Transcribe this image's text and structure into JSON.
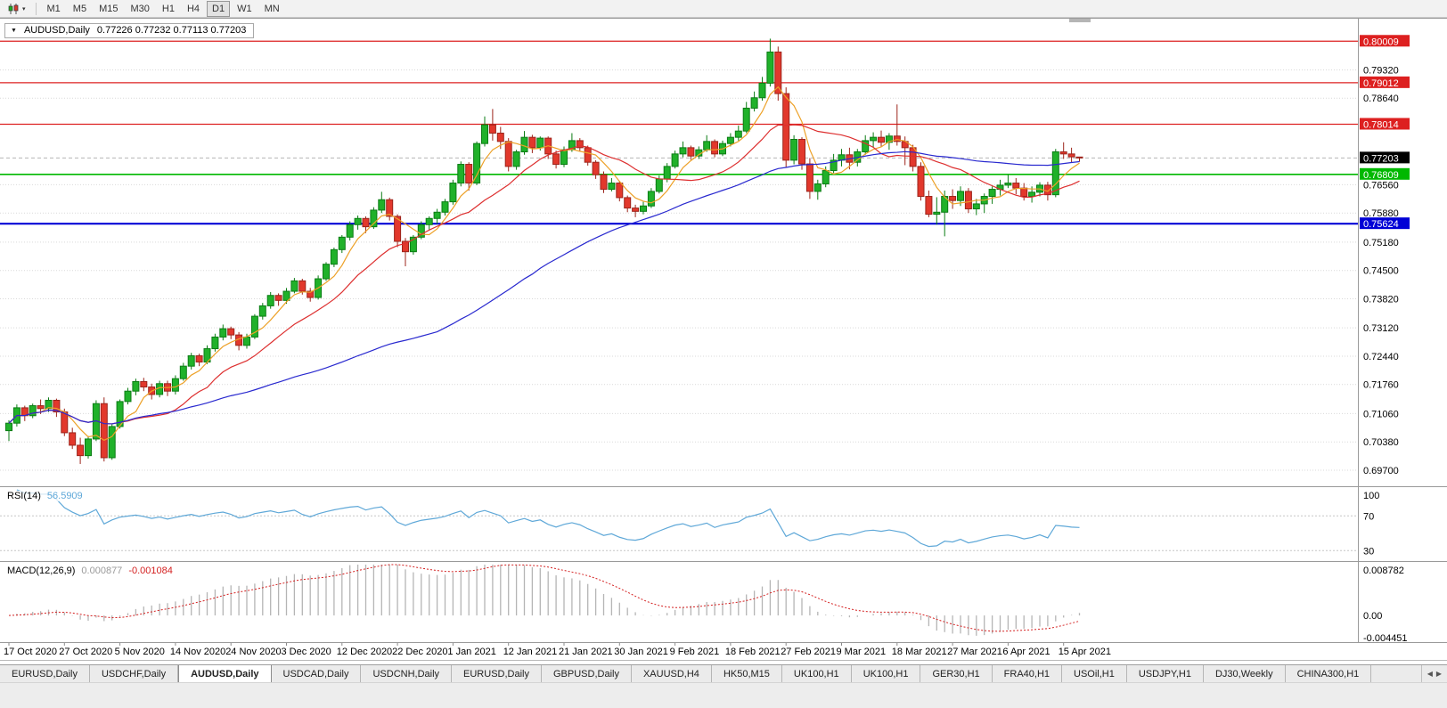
{
  "toolbar": {
    "timeframes": [
      "M1",
      "M5",
      "M15",
      "M30",
      "H1",
      "H4",
      "D1",
      "W1",
      "MN"
    ],
    "active": "D1"
  },
  "chart": {
    "symbol": "AUDUSD,Daily",
    "ohlc": "0.77226 0.77232 0.77113 0.77203",
    "rsi_name": "RSI(14)",
    "rsi_value": "56.5909",
    "macd_name": "MACD(12,26,9)",
    "macd_value_main": "0.000877",
    "macd_value_signal": "-0.001084"
  },
  "chart_data": {
    "type": "candlestick",
    "symbol": "AUDUSD",
    "timeframe": "Daily",
    "price_range": [
      0.694,
      0.804
    ],
    "price_ticks": [
      0.7932,
      0.7864,
      0.7656,
      0.7588,
      0.7518,
      0.745,
      0.7382,
      0.7312,
      0.7244,
      0.7176,
      0.7106,
      0.7038,
      0.697
    ],
    "hlines": [
      {
        "price": 0.80009,
        "color": "#dd2020",
        "width": 1.2
      },
      {
        "price": 0.79012,
        "color": "#dd2020",
        "width": 1.2
      },
      {
        "price": 0.78014,
        "color": "#dd2020",
        "width": 1.2
      },
      {
        "price": 0.76809,
        "color": "#00b800",
        "width": 1.6
      },
      {
        "price": 0.75624,
        "color": "#0000d6",
        "width": 2.2
      }
    ],
    "current_price": 0.77203,
    "date_ticks": {
      "step": 7,
      "labels": [
        "17 Oct 2020",
        "27 Oct 2020",
        "5 Nov 2020",
        "14 Nov 2020",
        "24 Nov 2020",
        "3 Dec 2020",
        "12 Dec 2020",
        "22 Dec 2020",
        "1 Jan 2021",
        "12 Jan 2021",
        "21 Jan 2021",
        "30 Jan 2021",
        "9 Feb 2021",
        "18 Feb 2021",
        "27 Feb 2021",
        "9 Mar 2021",
        "18 Mar 2021",
        "27 Mar 2021",
        "6 Apr 2021",
        "15 Apr 2021"
      ]
    },
    "colors": {
      "up": "#20b12a",
      "up_border": "#0b7c14",
      "down": "#e2382c",
      "down_border": "#9c241b",
      "grid": "#d9d9d9",
      "background": "#ffffff",
      "current_price_line": "#b5b5b5",
      "tag_text": "#ffffff",
      "current_tag_bg": "#000000"
    },
    "moving_averages": [
      {
        "period": 5,
        "color": "#eda128"
      },
      {
        "period": 14,
        "color": "#dd2f2f"
      },
      {
        "period": 55,
        "color": "#2929cf"
      }
    ],
    "rsi": {
      "name": "RSI(14)",
      "value": "56.5909",
      "period": 14,
      "levels": [
        70,
        30
      ],
      "axis_labels": [
        100,
        70,
        30
      ],
      "range": [
        20,
        100
      ],
      "color": "#5fa8d8"
    },
    "macd": {
      "name": "MACD(12,26,9)",
      "values": [
        "0.000877",
        "-0.001084"
      ],
      "fast": 12,
      "slow": 26,
      "signal_period": 9,
      "range": [
        -0.004451,
        0.008782
      ],
      "axis_labels": [
        "0.008782",
        "0.00",
        "-0.004451"
      ],
      "hist_color": "#b5b5b5",
      "signal_color": "#d42020"
    },
    "candles": [
      [
        0.7065,
        0.709,
        0.704,
        0.7083
      ],
      [
        0.7083,
        0.7128,
        0.7075,
        0.712
      ],
      [
        0.712,
        0.7125,
        0.7088,
        0.7101
      ],
      [
        0.7101,
        0.713,
        0.7095,
        0.7125
      ],
      [
        0.7125,
        0.714,
        0.7105,
        0.7118
      ],
      [
        0.7118,
        0.7145,
        0.711,
        0.7138
      ],
      [
        0.7138,
        0.7142,
        0.7098,
        0.711
      ],
      [
        0.711,
        0.7118,
        0.7052,
        0.706
      ],
      [
        0.706,
        0.7072,
        0.7021,
        0.703
      ],
      [
        0.703,
        0.7048,
        0.6985,
        0.7005
      ],
      [
        0.7005,
        0.7052,
        0.6998,
        0.7045
      ],
      [
        0.7045,
        0.7138,
        0.704,
        0.713
      ],
      [
        0.713,
        0.7145,
        0.6991,
        0.7
      ],
      [
        0.7,
        0.708,
        0.6995,
        0.7075
      ],
      [
        0.7075,
        0.714,
        0.707,
        0.7135
      ],
      [
        0.7135,
        0.7168,
        0.7128,
        0.716
      ],
      [
        0.716,
        0.719,
        0.715,
        0.7183
      ],
      [
        0.7183,
        0.7192,
        0.716,
        0.717
      ],
      [
        0.717,
        0.7178,
        0.714,
        0.7152
      ],
      [
        0.7152,
        0.7185,
        0.7145,
        0.7178
      ],
      [
        0.7178,
        0.7185,
        0.7148,
        0.716
      ],
      [
        0.716,
        0.7198,
        0.7152,
        0.719
      ],
      [
        0.719,
        0.7228,
        0.7185,
        0.722
      ],
      [
        0.722,
        0.7252,
        0.7212,
        0.7245
      ],
      [
        0.7245,
        0.725,
        0.722,
        0.723
      ],
      [
        0.723,
        0.727,
        0.7225,
        0.7262
      ],
      [
        0.7262,
        0.7298,
        0.7255,
        0.729
      ],
      [
        0.729,
        0.732,
        0.7282,
        0.731
      ],
      [
        0.731,
        0.7315,
        0.7285,
        0.7295
      ],
      [
        0.7295,
        0.7302,
        0.7258,
        0.727
      ],
      [
        0.727,
        0.7298,
        0.7262,
        0.729
      ],
      [
        0.729,
        0.7345,
        0.7285,
        0.734
      ],
      [
        0.734,
        0.7372,
        0.7332,
        0.7365
      ],
      [
        0.7365,
        0.7398,
        0.7358,
        0.739
      ],
      [
        0.739,
        0.7395,
        0.7365,
        0.7378
      ],
      [
        0.7378,
        0.7408,
        0.737,
        0.74
      ],
      [
        0.74,
        0.7432,
        0.7395,
        0.7425
      ],
      [
        0.7425,
        0.743,
        0.7392,
        0.74
      ],
      [
        0.74,
        0.7408,
        0.7375,
        0.7385
      ],
      [
        0.7385,
        0.7438,
        0.738,
        0.743
      ],
      [
        0.743,
        0.747,
        0.7425,
        0.7465
      ],
      [
        0.7465,
        0.7505,
        0.7458,
        0.75
      ],
      [
        0.75,
        0.7535,
        0.7492,
        0.753
      ],
      [
        0.753,
        0.7568,
        0.7522,
        0.756
      ],
      [
        0.756,
        0.7582,
        0.7548,
        0.7575
      ],
      [
        0.7575,
        0.758,
        0.754,
        0.7555
      ],
      [
        0.7555,
        0.7602,
        0.755,
        0.7595
      ],
      [
        0.7595,
        0.7639,
        0.7588,
        0.762
      ],
      [
        0.762,
        0.7625,
        0.757,
        0.758
      ],
      [
        0.758,
        0.7585,
        0.7506,
        0.752
      ],
      [
        0.752,
        0.7528,
        0.746,
        0.7495
      ],
      [
        0.7495,
        0.7535,
        0.7488,
        0.753
      ],
      [
        0.753,
        0.7568,
        0.7525,
        0.756
      ],
      [
        0.756,
        0.758,
        0.7548,
        0.7575
      ],
      [
        0.7575,
        0.7598,
        0.7562,
        0.759
      ],
      [
        0.759,
        0.7622,
        0.7582,
        0.7615
      ],
      [
        0.7615,
        0.7668,
        0.7608,
        0.766
      ],
      [
        0.766,
        0.7712,
        0.7652,
        0.7705
      ],
      [
        0.7705,
        0.771,
        0.7642,
        0.766
      ],
      [
        0.766,
        0.776,
        0.7655,
        0.7755
      ],
      [
        0.7755,
        0.782,
        0.7748,
        0.78
      ],
      [
        0.78,
        0.7838,
        0.7762,
        0.778
      ],
      [
        0.778,
        0.7795,
        0.7742,
        0.776
      ],
      [
        0.776,
        0.7768,
        0.7688,
        0.77
      ],
      [
        0.77,
        0.774,
        0.7692,
        0.7735
      ],
      [
        0.7735,
        0.7785,
        0.7728,
        0.777
      ],
      [
        0.777,
        0.7776,
        0.7732,
        0.7745
      ],
      [
        0.7745,
        0.7772,
        0.7738,
        0.7768
      ],
      [
        0.7768,
        0.7772,
        0.7718,
        0.773
      ],
      [
        0.773,
        0.7738,
        0.7695,
        0.7705
      ],
      [
        0.7705,
        0.7748,
        0.7698,
        0.774
      ],
      [
        0.774,
        0.778,
        0.7735,
        0.7762
      ],
      [
        0.7762,
        0.7768,
        0.7736,
        0.7745
      ],
      [
        0.7745,
        0.775,
        0.7702,
        0.771
      ],
      [
        0.771,
        0.7715,
        0.767,
        0.768
      ],
      [
        0.768,
        0.7688,
        0.7636,
        0.7645
      ],
      [
        0.7645,
        0.7672,
        0.764,
        0.766
      ],
      [
        0.766,
        0.7665,
        0.7616,
        0.7625
      ],
      [
        0.7625,
        0.763,
        0.759,
        0.76
      ],
      [
        0.76,
        0.7608,
        0.7578,
        0.7592
      ],
      [
        0.7592,
        0.7615,
        0.7585,
        0.7605
      ],
      [
        0.7605,
        0.7648,
        0.76,
        0.764
      ],
      [
        0.764,
        0.7678,
        0.7635,
        0.767
      ],
      [
        0.767,
        0.7708,
        0.7662,
        0.77
      ],
      [
        0.77,
        0.7738,
        0.7695,
        0.773
      ],
      [
        0.773,
        0.776,
        0.7722,
        0.7745
      ],
      [
        0.7745,
        0.775,
        0.7716,
        0.7725
      ],
      [
        0.7725,
        0.7748,
        0.7718,
        0.774
      ],
      [
        0.774,
        0.7775,
        0.7735,
        0.776
      ],
      [
        0.776,
        0.7765,
        0.7722,
        0.773
      ],
      [
        0.773,
        0.7762,
        0.7725,
        0.7755
      ],
      [
        0.7755,
        0.778,
        0.7748,
        0.777
      ],
      [
        0.777,
        0.7798,
        0.7762,
        0.7785
      ],
      [
        0.7785,
        0.7855,
        0.778,
        0.784
      ],
      [
        0.784,
        0.788,
        0.7832,
        0.7865
      ],
      [
        0.7865,
        0.7915,
        0.7858,
        0.79
      ],
      [
        0.79,
        0.8007,
        0.7892,
        0.7975
      ],
      [
        0.7975,
        0.7988,
        0.7858,
        0.7875
      ],
      [
        0.7875,
        0.789,
        0.7698,
        0.7715
      ],
      [
        0.7715,
        0.7775,
        0.7705,
        0.7765
      ],
      [
        0.7765,
        0.777,
        0.7692,
        0.7706
      ],
      [
        0.7706,
        0.772,
        0.7622,
        0.764
      ],
      [
        0.764,
        0.7668,
        0.762,
        0.7658
      ],
      [
        0.7658,
        0.77,
        0.765,
        0.769
      ],
      [
        0.769,
        0.773,
        0.7684,
        0.7715
      ],
      [
        0.7715,
        0.7742,
        0.77,
        0.7728
      ],
      [
        0.7728,
        0.7745,
        0.7693,
        0.771
      ],
      [
        0.771,
        0.7742,
        0.77,
        0.7735
      ],
      [
        0.7735,
        0.7775,
        0.7728,
        0.7762
      ],
      [
        0.7762,
        0.7782,
        0.7745,
        0.777
      ],
      [
        0.777,
        0.7786,
        0.7748,
        0.7758
      ],
      [
        0.7758,
        0.778,
        0.774,
        0.7773
      ],
      [
        0.7773,
        0.7849,
        0.775,
        0.776
      ],
      [
        0.776,
        0.7772,
        0.7703,
        0.7745
      ],
      [
        0.7745,
        0.7752,
        0.7688,
        0.77
      ],
      [
        0.77,
        0.771,
        0.7618,
        0.7628
      ],
      [
        0.7628,
        0.7642,
        0.7578,
        0.7585
      ],
      [
        0.7585,
        0.7626,
        0.756,
        0.759
      ],
      [
        0.759,
        0.7642,
        0.7532,
        0.7628
      ],
      [
        0.7628,
        0.7645,
        0.7598,
        0.7618
      ],
      [
        0.7618,
        0.7652,
        0.7605,
        0.764
      ],
      [
        0.764,
        0.7648,
        0.7588,
        0.7598
      ],
      [
        0.7598,
        0.7622,
        0.7583,
        0.761
      ],
      [
        0.761,
        0.7635,
        0.7588,
        0.7628
      ],
      [
        0.7628,
        0.7652,
        0.761,
        0.7645
      ],
      [
        0.7645,
        0.7668,
        0.763,
        0.7655
      ],
      [
        0.7655,
        0.768,
        0.7648,
        0.766
      ],
      [
        0.766,
        0.7672,
        0.7633,
        0.7648
      ],
      [
        0.7648,
        0.766,
        0.7618,
        0.7628
      ],
      [
        0.7628,
        0.7652,
        0.7613,
        0.7638
      ],
      [
        0.7638,
        0.7662,
        0.7628,
        0.7655
      ],
      [
        0.7655,
        0.7663,
        0.7618,
        0.7632
      ],
      [
        0.7632,
        0.7742,
        0.7626,
        0.7735
      ],
      [
        0.7735,
        0.7758,
        0.7718,
        0.773
      ],
      [
        0.773,
        0.7745,
        0.771,
        0.7723
      ],
      [
        0.77226,
        0.77232,
        0.77113,
        0.77203
      ]
    ]
  },
  "tabs": {
    "items": [
      "EURUSD,Daily",
      "USDCHF,Daily",
      "AUDUSD,Daily",
      "USDCAD,Daily",
      "USDCNH,Daily",
      "EURUSD,Daily",
      "GBPUSD,Daily",
      "XAUUSD,H4",
      "HK50,M15",
      "UK100,H1",
      "UK100,H1",
      "GER30,H1",
      "FRA40,H1",
      "USOil,H1",
      "USDJPY,H1",
      "DJ30,Weekly",
      "CHINA300,H1"
    ],
    "active_index": 2
  }
}
